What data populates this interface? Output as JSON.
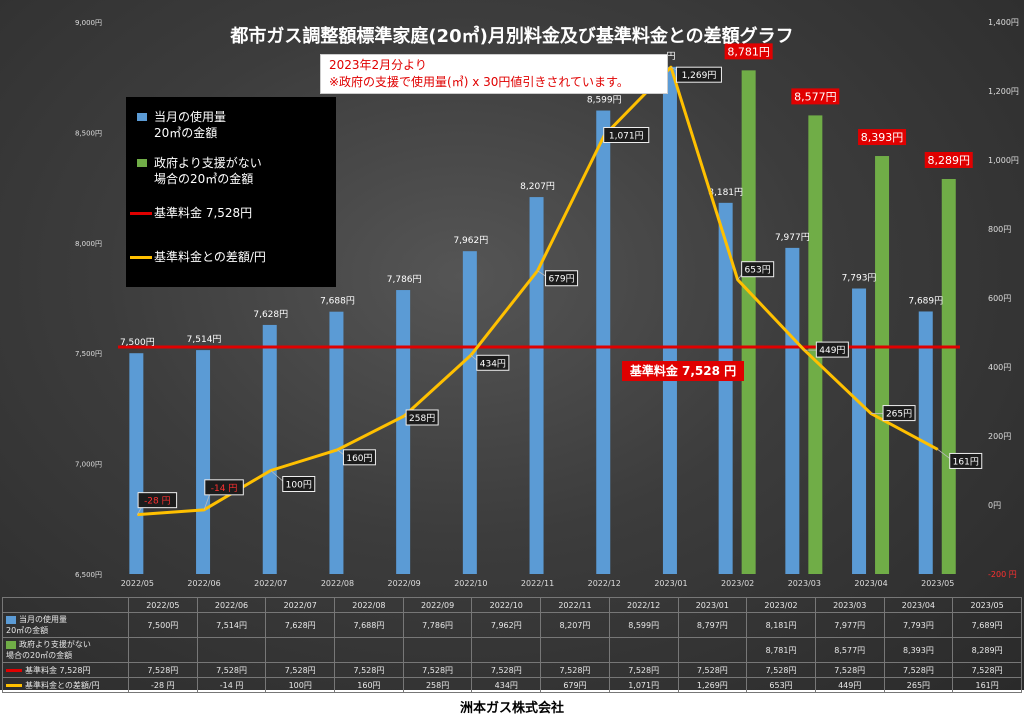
{
  "title": "都市ガス調整額標準家庭(20㎥)月別料金及び基準料金との差額グラフ",
  "note_lines": [
    "2023年2月分より",
    "※政府の支援で使用量(㎥) x 30円値引きされています。"
  ],
  "footer": "洲本ガス株式会社",
  "base_label": "基準料金  7,528  円",
  "legend": [
    {
      "lines": [
        "当月の使用量",
        "20㎥の金額"
      ],
      "color": "#5b9bd5"
    },
    {
      "lines": [
        "政府より支援がない",
        "場合の20㎥の金額"
      ],
      "color": "#70ad47"
    },
    {
      "lines": [
        "基準料金   7,528円"
      ],
      "color": "#e00000"
    },
    {
      "lines": [
        "基準料金との差額/円"
      ],
      "color": "#ffc000"
    }
  ],
  "colors": {
    "blue": "#5b9bd5",
    "green": "#70ad47",
    "red": "#e00000",
    "yellow": "#ffc000"
  },
  "table": {
    "row_headers": [
      [
        "当月の使用量",
        "20㎥の金額"
      ],
      [
        "政府より支援がない",
        "場合の20㎥の金額"
      ],
      [
        "基準料金   7,528円"
      ],
      [
        "基準料金との差額/円"
      ]
    ]
  },
  "chart_data": {
    "type": "bar",
    "categories": [
      "2022/05",
      "2022/06",
      "2022/07",
      "2022/08",
      "2022/09",
      "2022/10",
      "2022/11",
      "2022/12",
      "2023/01",
      "2023/02",
      "2023/03",
      "2023/04",
      "2023/05"
    ],
    "series": [
      {
        "name": "当月の使用量 20㎥の金額",
        "type": "bar",
        "axis": "left",
        "values": [
          7500,
          7514,
          7628,
          7688,
          7786,
          7962,
          8207,
          8599,
          8797,
          8181,
          7977,
          7793,
          7689
        ],
        "labels": [
          "7,500円",
          "7,514円",
          "7,628円",
          "7,688円",
          "7,786円",
          "7,962円",
          "8,207円",
          "8,599円",
          "円",
          "8,181円",
          "7,977円",
          "7,793円",
          "7,689円"
        ],
        "table": [
          "7,500円",
          "7,514円",
          "7,628円",
          "7,688円",
          "7,786円",
          "7,962円",
          "8,207円",
          "8,599円",
          "8,797円",
          "8,181円",
          "7,977円",
          "7,793円",
          "7,689円"
        ]
      },
      {
        "name": "政府より支援がない場合の20㎥の金額",
        "type": "bar",
        "axis": "left",
        "values": [
          null,
          null,
          null,
          null,
          null,
          null,
          null,
          null,
          null,
          8781,
          8577,
          8393,
          8289
        ],
        "labels": [
          "",
          "",
          "",
          "",
          "",
          "",
          "",
          "",
          "",
          "8,781円",
          "8,577円",
          "8,393円",
          "8,289円"
        ],
        "table": [
          "",
          "",
          "",
          "",
          "",
          "",
          "",
          "",
          "",
          "8,781円",
          "8,577円",
          "8,393円",
          "8,289円"
        ]
      },
      {
        "name": "基準料金 7,528円",
        "type": "line",
        "axis": "left",
        "values": [
          7528,
          7528,
          7528,
          7528,
          7528,
          7528,
          7528,
          7528,
          7528,
          7528,
          7528,
          7528,
          7528
        ],
        "table": [
          "7,528円",
          "7,528円",
          "7,528円",
          "7,528円",
          "7,528円",
          "7,528円",
          "7,528円",
          "7,528円",
          "7,528円",
          "7,528円",
          "7,528円",
          "7,528円",
          "7,528円"
        ]
      },
      {
        "name": "基準料金との差額/円",
        "type": "line",
        "axis": "right",
        "values": [
          -28,
          -14,
          100,
          160,
          258,
          434,
          679,
          1071,
          1269,
          653,
          449,
          265,
          161
        ],
        "labels": [
          "-28 円",
          "-14 円",
          "100円",
          "160円",
          "258円",
          "434円",
          "679円",
          "1,071円",
          "1,269円",
          "653円",
          "449円",
          "265円",
          "161円"
        ],
        "table": [
          "-28 円",
          "-14 円",
          "100円",
          "160円",
          "258円",
          "434円",
          "679円",
          "1,071円",
          "1,269円",
          "653円",
          "449円",
          "265円",
          "161円"
        ]
      }
    ],
    "y_left": {
      "range": [
        6500,
        9000
      ],
      "ticks": [
        "6,500円",
        "7,000円",
        "7,500円",
        "8,000円",
        "8,500円",
        "9,000円"
      ],
      "tick_values": [
        6500,
        7000,
        7500,
        8000,
        8500,
        9000
      ]
    },
    "y_right": {
      "range": [
        -200,
        1400
      ],
      "ticks": [
        "-200 円",
        "0円",
        "200円",
        "400円",
        "600円",
        "800円",
        "1,000円",
        "1,200円",
        "1,400円"
      ],
      "tick_values": [
        -200,
        0,
        200,
        400,
        600,
        800,
        1000,
        1200,
        1400
      ]
    },
    "grid": false,
    "legend_position": "top-left"
  }
}
